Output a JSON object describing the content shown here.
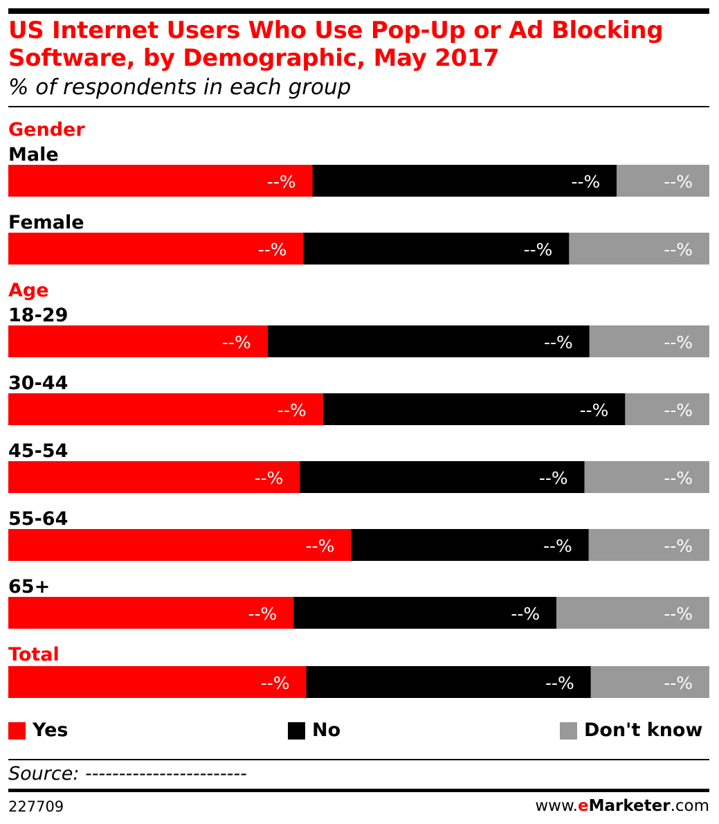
{
  "header": {
    "title": "US Internet Users Who Use Pop-Up or Ad Blocking Software, by Demographic, May 2017",
    "subtitle": "% of respondents in each group"
  },
  "colors": {
    "yes": "#ff0000",
    "no": "#000000",
    "dont_know": "#999999"
  },
  "chart_data": {
    "type": "bar",
    "orientation": "horizontal",
    "stacked": true,
    "normalized": true,
    "title": "US Internet Users Who Use Pop-Up or Ad Blocking Software, by Demographic, May 2017",
    "subtitle": "% of respondents in each group",
    "xlim": [
      0,
      100
    ],
    "grid": false,
    "legend_position": "bottom",
    "series": [
      {
        "name": "Yes",
        "color": "#ff0000"
      },
      {
        "name": "No",
        "color": "#000000"
      },
      {
        "name": "Don't know",
        "color": "#999999"
      }
    ],
    "groups": [
      {
        "name": "Gender",
        "rows": [
          {
            "label": "Male",
            "values": [
              43.4,
              43.4,
              13.2
            ],
            "value_labels": [
              "--%",
              "--%",
              "--%"
            ]
          },
          {
            "label": "Female",
            "values": [
              42.1,
              37.9,
              20.0
            ],
            "value_labels": [
              "--%",
              "--%",
              "--%"
            ]
          }
        ]
      },
      {
        "name": "Age",
        "rows": [
          {
            "label": "18-29",
            "values": [
              37.0,
              45.9,
              17.1
            ],
            "value_labels": [
              "--%",
              "--%",
              "--%"
            ]
          },
          {
            "label": "30-44",
            "values": [
              44.9,
              43.1,
              12.0
            ],
            "value_labels": [
              "--%",
              "--%",
              "--%"
            ]
          },
          {
            "label": "45-54",
            "values": [
              41.6,
              40.6,
              17.8
            ],
            "value_labels": [
              "--%",
              "--%",
              "--%"
            ]
          },
          {
            "label": "55-64",
            "values": [
              48.9,
              33.9,
              17.2
            ],
            "value_labels": [
              "--%",
              "--%",
              "--%"
            ]
          },
          {
            "label": "65+",
            "values": [
              40.7,
              37.5,
              21.8
            ],
            "value_labels": [
              "--%",
              "--%",
              "--%"
            ]
          }
        ]
      },
      {
        "name": "Total",
        "rows": [
          {
            "label": "",
            "values": [
              42.5,
              40.6,
              16.9
            ],
            "value_labels": [
              "--%",
              "--%",
              "--%"
            ]
          }
        ]
      }
    ]
  },
  "legend": {
    "yes": "Yes",
    "no": "No",
    "dont_know": "Don't know"
  },
  "footer": {
    "source": "Source: ------------------------",
    "chart_id": "227709",
    "brand_prefix": "www.",
    "brand_e": "e",
    "brand_name": "Marketer",
    "brand_suffix": ".com"
  }
}
